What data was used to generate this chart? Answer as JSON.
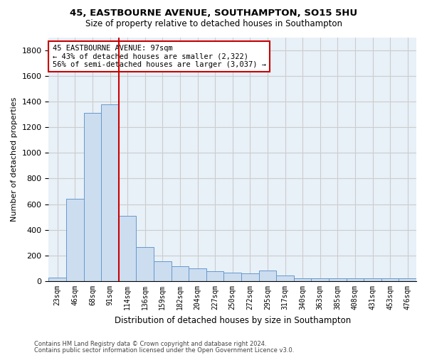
{
  "title1": "45, EASTBOURNE AVENUE, SOUTHAMPTON, SO15 5HU",
  "title2": "Size of property relative to detached houses in Southampton",
  "xlabel": "Distribution of detached houses by size in Southampton",
  "ylabel": "Number of detached properties",
  "categories": [
    "23sqm",
    "46sqm",
    "68sqm",
    "91sqm",
    "114sqm",
    "136sqm",
    "159sqm",
    "182sqm",
    "204sqm",
    "227sqm",
    "250sqm",
    "272sqm",
    "295sqm",
    "317sqm",
    "340sqm",
    "363sqm",
    "385sqm",
    "408sqm",
    "431sqm",
    "453sqm",
    "476sqm"
  ],
  "values": [
    30,
    640,
    1310,
    1380,
    510,
    265,
    155,
    115,
    100,
    75,
    65,
    60,
    85,
    45,
    25,
    25,
    25,
    25,
    25,
    25,
    25
  ],
  "bar_color": "#ccddf0",
  "bar_edge_color": "#6699cc",
  "vline_x": 3.5,
  "vline_color": "#cc0000",
  "annotation_box_text": "45 EASTBOURNE AVENUE: 97sqm\n← 43% of detached houses are smaller (2,322)\n56% of semi-detached houses are larger (3,037) →",
  "annotation_box_color": "#cc0000",
  "ylim": [
    0,
    1900
  ],
  "yticks": [
    0,
    200,
    400,
    600,
    800,
    1000,
    1200,
    1400,
    1600,
    1800
  ],
  "footnote1": "Contains HM Land Registry data © Crown copyright and database right 2024.",
  "footnote2": "Contains public sector information licensed under the Open Government Licence v3.0.",
  "grid_color": "#cccccc",
  "bg_color": "#e8f0f8"
}
